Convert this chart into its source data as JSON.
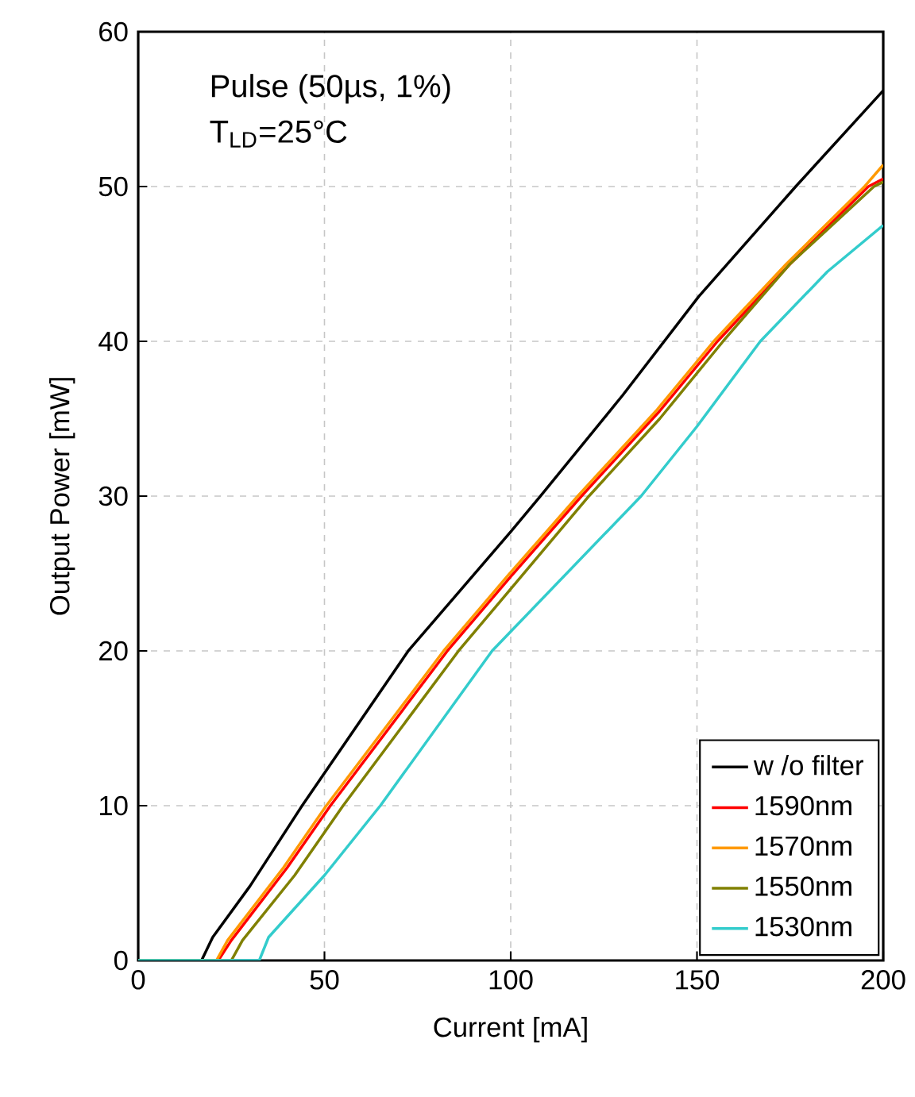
{
  "chart_data": {
    "type": "line",
    "xlabel": "Current [mA]",
    "ylabel": "Output Power [mW]",
    "annotations": [
      "Pulse (50µs, 1%)",
      "T$_{LD}$=25°C"
    ],
    "xlim": [
      0,
      200
    ],
    "ylim": [
      0,
      60
    ],
    "xticks": [
      0,
      50,
      100,
      150,
      200
    ],
    "yticks": [
      0,
      10,
      20,
      30,
      40,
      50,
      60
    ],
    "grid": true,
    "legend": "bottom right",
    "marker": "none",
    "line_style": "solid",
    "series": [
      {
        "name": "w /o filter",
        "color": "#000000",
        "x": [
          0,
          17,
          20,
          30,
          44,
          72.5,
          100,
          108,
          130,
          150.5,
          176.5,
          200
        ],
        "values": [
          0,
          0,
          1.5,
          4.8,
          10,
          20,
          27.7,
          30,
          36.5,
          42.9,
          50,
          56.2
        ]
      },
      {
        "name": "1590nm",
        "color": "#ff0000",
        "x": [
          0,
          21.5,
          25,
          40,
          51.6,
          83,
          100,
          119,
          140,
          155.5,
          175,
          196,
          200
        ],
        "values": [
          0,
          0,
          1.3,
          6,
          10,
          20,
          24.8,
          30,
          35.5,
          40,
          45,
          50,
          50.5
        ]
      },
      {
        "name": "1570nm",
        "color": "#ff9900",
        "x": [
          0,
          21,
          24,
          39,
          50.5,
          82,
          99,
          118,
          139,
          154.5,
          174,
          195,
          200
        ],
        "values": [
          0,
          0,
          1.3,
          6,
          10,
          20,
          24.8,
          30,
          35.5,
          40,
          45,
          50,
          51.4
        ]
      },
      {
        "name": "1550nm",
        "color": "#808000",
        "x": [
          0,
          25,
          28,
          42,
          55,
          86,
          100,
          121,
          140,
          157,
          175,
          197.5,
          200
        ],
        "values": [
          0,
          0,
          1.3,
          5.5,
          10,
          20,
          24,
          30,
          35,
          40,
          45,
          50,
          50.3
        ]
      },
      {
        "name": "1530nm",
        "color": "#33cccc",
        "x": [
          0,
          32.5,
          35,
          50,
          65,
          95,
          115,
          135,
          150,
          167,
          185,
          200
        ],
        "values": [
          0,
          0,
          1.5,
          5.5,
          10,
          20,
          25,
          30,
          34.5,
          40,
          44.5,
          47.5
        ]
      }
    ]
  }
}
